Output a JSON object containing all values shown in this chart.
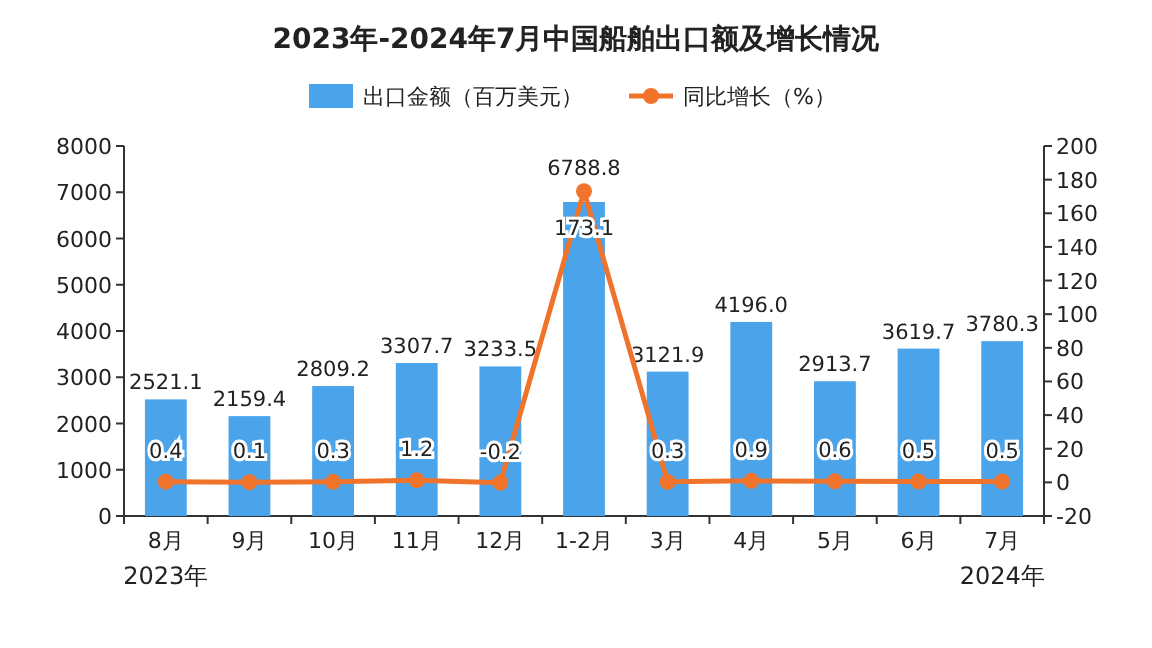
{
  "chart_data": {
    "type": "bar",
    "title": "2023年-2024年7月中国船舶出口额及增长情况",
    "categories": [
      "8月",
      "9月",
      "10月",
      "11月",
      "12月",
      "1-2月",
      "3月",
      "4月",
      "5月",
      "6月",
      "7月"
    ],
    "series": [
      {
        "name": "出口金额（百万美元）",
        "color": "#4ba3ea",
        "values": [
          2521.1,
          2159.4,
          2809.2,
          3307.7,
          3233.5,
          6788.8,
          3121.9,
          4196.0,
          2913.7,
          3619.7,
          3780.3
        ],
        "value_labels": [
          "2521.1",
          "2159.4",
          "2809.2",
          "3307.7",
          "3233.5",
          "6788.8",
          "3121.9",
          "4196.0",
          "2913.7",
          "3619.7",
          "3780.3"
        ]
      },
      {
        "name": "同比增长（%）",
        "type": "line",
        "axis": "y2",
        "color": "#f0732b",
        "marker": "circle",
        "values": [
          0.4,
          0.1,
          0.3,
          1.2,
          -0.2,
          173.1,
          0.3,
          0.9,
          0.6,
          0.5,
          0.5
        ],
        "value_labels": [
          "0.4",
          "0.1",
          "0.3",
          "1.2",
          "-0.2",
          "173.1",
          "0.3",
          "0.9",
          "0.6",
          "0.5",
          "0.5"
        ]
      }
    ],
    "ylim": [
      0,
      8000
    ],
    "yticks": [
      0,
      1000,
      2000,
      3000,
      4000,
      5000,
      6000,
      7000,
      8000
    ],
    "y2lim": [
      -20,
      200
    ],
    "y2ticks": [
      -20,
      0,
      20,
      40,
      60,
      80,
      100,
      120,
      140,
      160,
      180,
      200
    ],
    "legend": "top",
    "annotations": [
      "2023年",
      "2024年"
    ]
  }
}
